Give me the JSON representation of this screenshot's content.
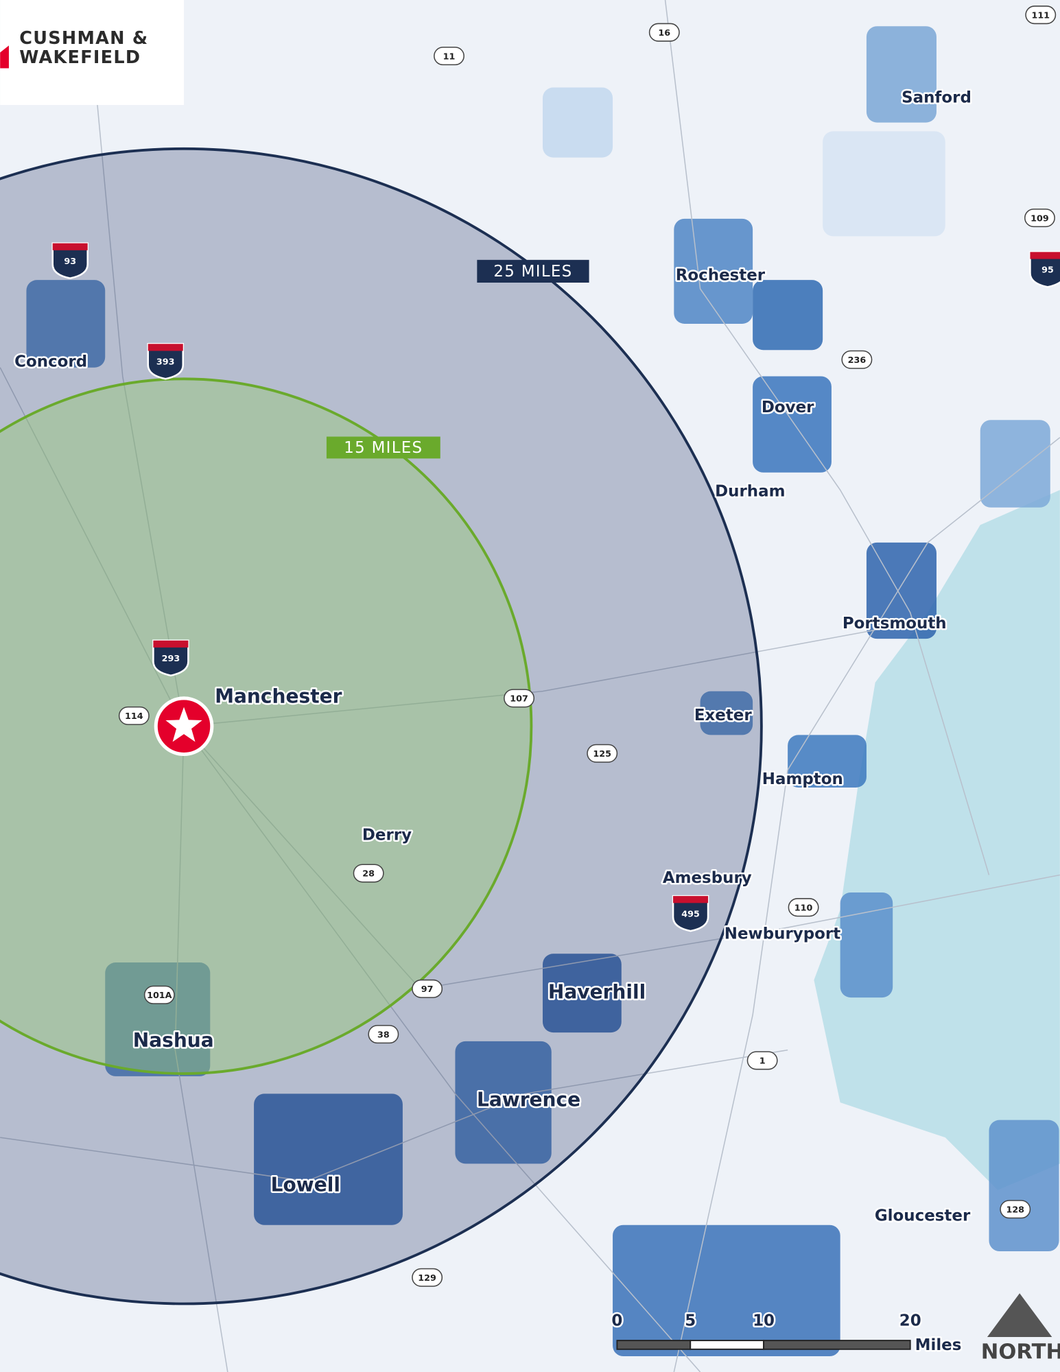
{
  "logo": {
    "line1": "CUSHMAN &",
    "line2": "WAKEFIELD"
  },
  "rings": [
    {
      "label": "25 MILES",
      "color": "#1c2f52"
    },
    {
      "label": "15 MILES",
      "color": "#6aaa2c"
    }
  ],
  "cities": [
    "Sanford",
    "Rochester",
    "Concord",
    "Dover",
    "Durham",
    "Portsmouth",
    "Manchester",
    "Exeter",
    "Hampton",
    "Derry",
    "Amesbury",
    "Newburyport",
    "Haverhill",
    "Nashua",
    "Lawrence",
    "Lowell",
    "Gloucester"
  ],
  "interstates": [
    "93",
    "393",
    "293",
    "495",
    "95"
  ],
  "routes": [
    "16",
    "11",
    "111",
    "109",
    "236",
    "107",
    "114",
    "125",
    "28",
    "110",
    "97",
    "101A",
    "38",
    "1",
    "128",
    "129"
  ],
  "scale": {
    "ticks": [
      0,
      5,
      10,
      20
    ],
    "unit": "Miles"
  },
  "north": "NORTH"
}
